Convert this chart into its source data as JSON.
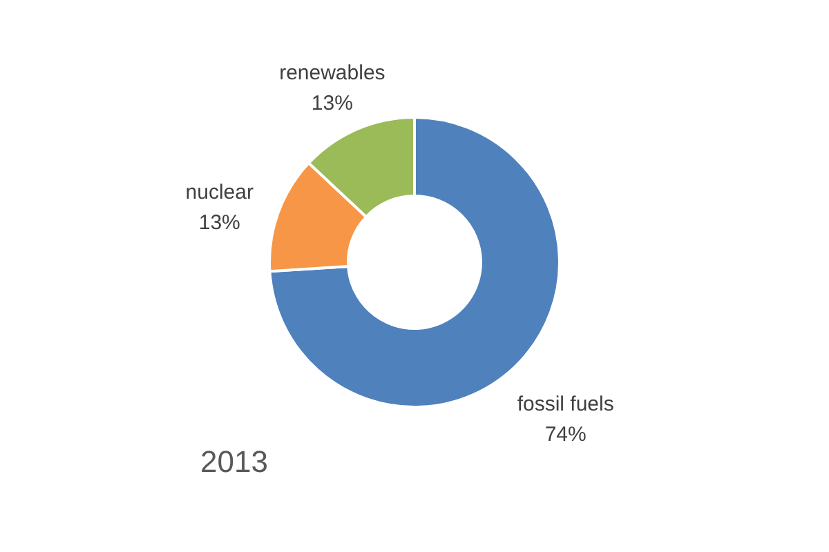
{
  "chart_data": {
    "type": "donut",
    "title": "2013",
    "categories": [
      "fossil fuels",
      "nuclear",
      "renewables"
    ],
    "values": [
      74,
      13,
      13
    ],
    "value_labels": [
      "74%",
      "13%",
      "13%"
    ],
    "colors": [
      "#4f81bd",
      "#f79646",
      "#9bbb59"
    ],
    "legend": false
  }
}
